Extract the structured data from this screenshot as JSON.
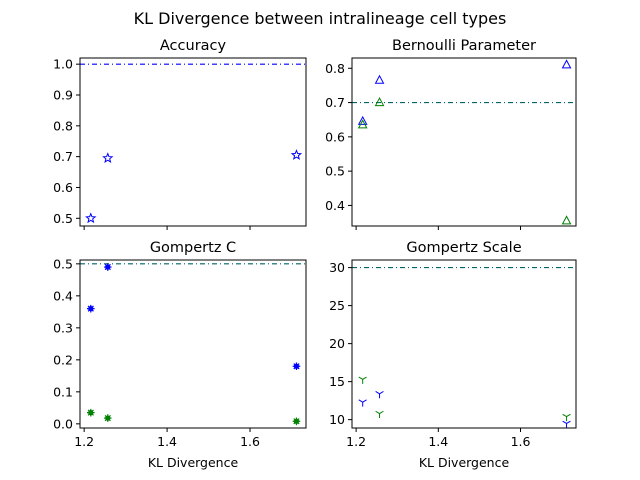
{
  "figure": {
    "title": "KL Divergence between intralineage cell types"
  },
  "colors": {
    "blue": "#0000ff",
    "green": "#008000",
    "reference_line": "#0000ff",
    "reference_line_alt": "#006666"
  },
  "chart_data": [
    {
      "id": "accuracy",
      "type": "scatter",
      "title": "Accuracy",
      "xlabel": "",
      "ylabel": "",
      "xlim": [
        1.19,
        1.735
      ],
      "ylim": [
        0.475,
        1.02
      ],
      "xticks": [
        1.2,
        1.4,
        1.6
      ],
      "xtick_labels": [],
      "yticks": [
        0.5,
        0.6,
        0.7,
        0.8,
        0.9,
        1.0
      ],
      "ytick_labels": [
        "0.5",
        "0.6",
        "0.7",
        "0.8",
        "0.9",
        "1.0"
      ],
      "reference_lines": [
        {
          "y": 1.0,
          "color": "#0000ff",
          "style": "dashdot"
        }
      ],
      "series": [
        {
          "marker": "star",
          "color": "#0000ff",
          "x": [
            1.216,
            1.257,
            1.712
          ],
          "y": [
            0.5,
            0.695,
            0.705
          ]
        }
      ]
    },
    {
      "id": "bernoulli",
      "type": "scatter",
      "title": "Bernoulli Parameter",
      "xlabel": "",
      "ylabel": "",
      "xlim": [
        1.19,
        1.735
      ],
      "ylim": [
        0.34,
        0.83
      ],
      "xticks": [
        1.2,
        1.4,
        1.6
      ],
      "xtick_labels": [],
      "yticks": [
        0.4,
        0.5,
        0.6,
        0.7,
        0.8
      ],
      "ytick_labels": [
        "0.4",
        "0.5",
        "0.6",
        "0.7",
        "0.8"
      ],
      "reference_lines": [
        {
          "y": 0.7,
          "color": "#006666",
          "style": "dashdot"
        }
      ],
      "series": [
        {
          "marker": "triangle",
          "color": "#0000ff",
          "x": [
            1.216,
            1.257,
            1.712
          ],
          "y": [
            0.645,
            0.765,
            0.81
          ]
        },
        {
          "marker": "triangle",
          "color": "#008000",
          "x": [
            1.216,
            1.257,
            1.712
          ],
          "y": [
            0.635,
            0.7,
            0.355
          ]
        }
      ]
    },
    {
      "id": "gompertz_c",
      "type": "scatter",
      "title": "Gompertz C",
      "xlabel": "KL Divergence",
      "ylabel": "",
      "xlim": [
        1.19,
        1.735
      ],
      "ylim": [
        -0.013,
        0.512
      ],
      "xticks": [
        1.2,
        1.4,
        1.6
      ],
      "xtick_labels": [
        "1.2",
        "1.4",
        "1.6"
      ],
      "yticks": [
        0.0,
        0.1,
        0.2,
        0.3,
        0.4,
        0.5
      ],
      "ytick_labels": [
        "0.0",
        "0.1",
        "0.2",
        "0.3",
        "0.4",
        "0.5"
      ],
      "reference_lines": [
        {
          "y": 0.5,
          "color": "#006666",
          "style": "dashdot"
        }
      ],
      "series": [
        {
          "marker": "asterisk",
          "color": "#0000ff",
          "x": [
            1.216,
            1.257,
            1.712
          ],
          "y": [
            0.36,
            0.49,
            0.18
          ]
        },
        {
          "marker": "asterisk",
          "color": "#008000",
          "x": [
            1.216,
            1.257,
            1.712
          ],
          "y": [
            0.035,
            0.018,
            0.008
          ]
        }
      ]
    },
    {
      "id": "gompertz_scale",
      "type": "scatter",
      "title": "Gompertz Scale",
      "xlabel": "KL Divergence",
      "ylabel": "",
      "xlim": [
        1.19,
        1.735
      ],
      "ylim": [
        8.9,
        31.0
      ],
      "xticks": [
        1.2,
        1.4,
        1.6
      ],
      "xtick_labels": [
        "1.2",
        "1.4",
        "1.6"
      ],
      "yticks": [
        10,
        15,
        20,
        25,
        30
      ],
      "ytick_labels": [
        "10",
        "15",
        "20",
        "25",
        "30"
      ],
      "reference_lines": [
        {
          "y": 30,
          "color": "#006666",
          "style": "dashdot"
        }
      ],
      "series": [
        {
          "marker": "tri_down",
          "color": "#0000ff",
          "x": [
            1.216,
            1.257,
            1.712
          ],
          "y": [
            12.3,
            13.4,
            9.5
          ]
        },
        {
          "marker": "tri_down",
          "color": "#008000",
          "x": [
            1.216,
            1.257,
            1.712
          ],
          "y": [
            15.3,
            10.8,
            10.4
          ]
        }
      ]
    }
  ]
}
